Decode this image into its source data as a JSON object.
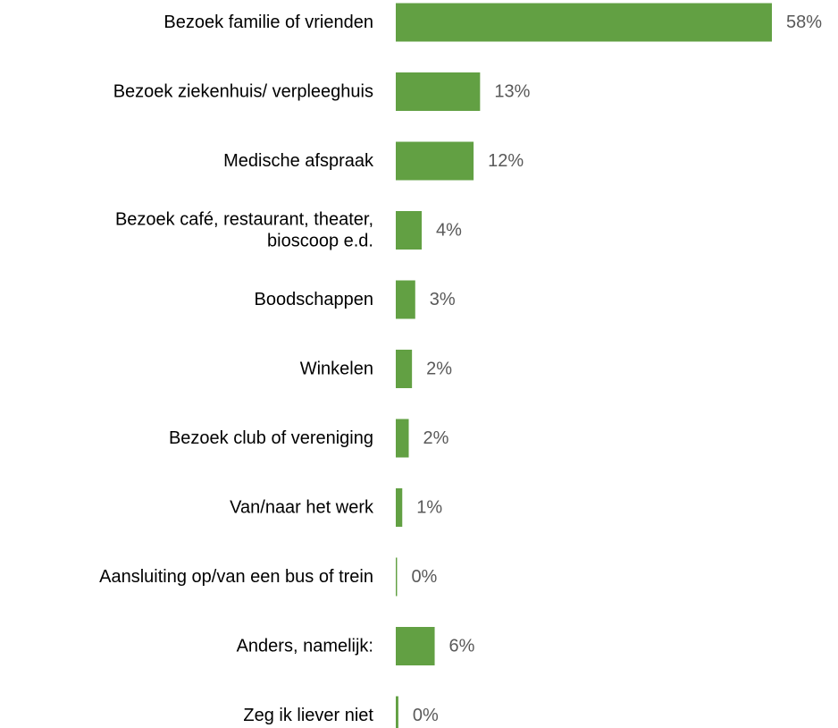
{
  "chart_data": {
    "type": "bar",
    "orientation": "horizontal",
    "categories": [
      [
        "Bezoek familie of vrienden"
      ],
      [
        "Bezoek ziekenhuis/ verpleeghuis"
      ],
      [
        "Medische afspraak"
      ],
      [
        "Bezoek café, restaurant, theater,",
        "bioscoop e.d."
      ],
      [
        "Boodschappen"
      ],
      [
        "Winkelen"
      ],
      [
        "Bezoek club of vereniging"
      ],
      [
        "Van/naar het werk"
      ],
      [
        "Aansluiting op/van een bus of trein"
      ],
      [
        "Anders, namelijk:"
      ],
      [
        "Zeg ik liever niet"
      ]
    ],
    "values": [
      58,
      13,
      12,
      4,
      3,
      2.5,
      2,
      1,
      0.2,
      6,
      0.4
    ],
    "value_labels": [
      "58%",
      "13%",
      "12%",
      "4%",
      "3%",
      "2%",
      "2%",
      "1%",
      "0%",
      "6%",
      "0%"
    ],
    "xlim": [
      0,
      58
    ],
    "bar_color": "#62a043",
    "value_label_color": "#595959",
    "grid": false,
    "legend": "none",
    "title": "",
    "xlabel": "",
    "ylabel": ""
  }
}
